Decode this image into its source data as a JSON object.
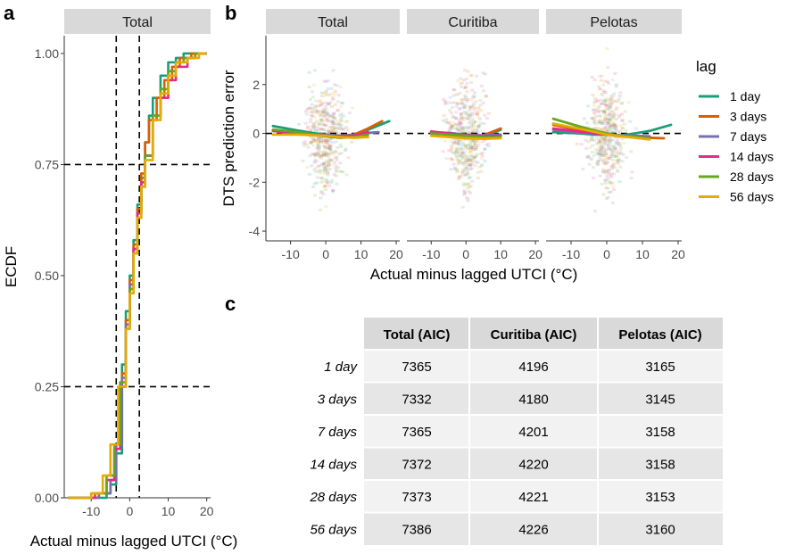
{
  "panel_letters": {
    "a": "a",
    "b": "b",
    "c": "c"
  },
  "colors": {
    "1 day": "#1b9e77",
    "3 days": "#d95f02",
    "7 days": "#7570b3",
    "14 days": "#e7298a",
    "28 days": "#66a61e",
    "56 days": "#e6ab02",
    "strip_bg": "#d9d9d9",
    "table_header_bg": "#d9d9d9",
    "table_row_odd": "#f2f2f2",
    "table_row_even": "#e6e6e6"
  },
  "chart_data": [
    {
      "id": "ecdf",
      "type": "line",
      "facet": "Total",
      "xlabel": "Actual minus lagged UTCI (°C)",
      "ylabel": "ECDF",
      "xlim": [
        -17,
        21
      ],
      "ylim": [
        0,
        1.04
      ],
      "x_ticks": [
        -10,
        0,
        10,
        20
      ],
      "y_ticks": [
        0.0,
        0.25,
        0.5,
        0.75,
        1.0
      ],
      "y_tick_labels": [
        "0.00",
        "0.25",
        "0.50",
        "0.75",
        "1.00"
      ],
      "hlines": [
        0.25,
        0.75
      ],
      "vlines": [
        -3.5,
        2.5
      ],
      "series": [
        {
          "name": "1 day",
          "x": [
            -16,
            -6,
            -5,
            -3.5,
            -2,
            -1,
            0,
            1,
            2,
            3,
            4,
            5,
            6,
            8,
            10,
            12,
            14,
            20
          ],
          "y": [
            0,
            0.01,
            0.03,
            0.1,
            0.3,
            0.42,
            0.5,
            0.58,
            0.66,
            0.72,
            0.8,
            0.86,
            0.9,
            0.95,
            0.98,
            0.99,
            1.0,
            1.0
          ]
        },
        {
          "name": "3 days",
          "x": [
            -16,
            -8,
            -5,
            -3.5,
            -2,
            -1,
            0,
            1,
            2,
            3,
            4,
            5,
            7,
            9,
            11,
            13,
            16,
            20
          ],
          "y": [
            0,
            0.01,
            0.04,
            0.12,
            0.28,
            0.4,
            0.49,
            0.57,
            0.65,
            0.73,
            0.8,
            0.85,
            0.9,
            0.94,
            0.97,
            0.99,
            1.0,
            1.0
          ]
        },
        {
          "name": "7 days",
          "x": [
            -16,
            -8,
            -5,
            -3.5,
            -2,
            -1,
            0,
            1,
            2,
            3,
            4,
            6,
            8,
            10,
            12,
            14,
            17,
            20
          ],
          "y": [
            0,
            0.01,
            0.04,
            0.12,
            0.27,
            0.39,
            0.48,
            0.56,
            0.64,
            0.71,
            0.77,
            0.86,
            0.91,
            0.95,
            0.98,
            0.99,
            1.0,
            1.0
          ]
        },
        {
          "name": "14 days",
          "x": [
            -16,
            -9,
            -6,
            -4,
            -2.5,
            -1,
            0,
            1,
            2,
            3,
            4,
            6,
            8,
            10,
            12,
            15,
            17,
            20
          ],
          "y": [
            0,
            0.01,
            0.04,
            0.11,
            0.25,
            0.38,
            0.47,
            0.56,
            0.64,
            0.71,
            0.77,
            0.86,
            0.9,
            0.94,
            0.97,
            0.99,
            1.0,
            1.0
          ]
        },
        {
          "name": "28 days",
          "x": [
            -16,
            -10,
            -6,
            -4,
            -2.5,
            -1,
            0,
            1,
            2,
            3,
            4,
            6,
            8,
            10,
            12,
            14,
            17,
            20
          ],
          "y": [
            0,
            0.01,
            0.05,
            0.12,
            0.26,
            0.38,
            0.47,
            0.55,
            0.63,
            0.7,
            0.77,
            0.86,
            0.92,
            0.96,
            0.98,
            0.99,
            1.0,
            1.0
          ]
        },
        {
          "name": "56 days",
          "x": [
            -16,
            -10,
            -7,
            -5,
            -3,
            -1,
            0,
            1,
            2,
            3,
            4,
            6,
            8,
            10,
            12,
            15,
            18,
            20
          ],
          "y": [
            0,
            0.01,
            0.05,
            0.12,
            0.25,
            0.38,
            0.46,
            0.55,
            0.63,
            0.7,
            0.76,
            0.85,
            0.91,
            0.95,
            0.98,
            0.99,
            1.0,
            1.0
          ]
        }
      ]
    },
    {
      "id": "prediction_error",
      "type": "scatter",
      "facets": [
        "Total",
        "Curitiba",
        "Pelotas"
      ],
      "xlabel": "Actual minus lagged UTCI (°C)",
      "ylabel": "DTS prediction error",
      "xlim": [
        -17,
        21
      ],
      "ylim": [
        -4.4,
        4.0
      ],
      "x_ticks": [
        -10,
        0,
        10,
        20
      ],
      "y_ticks": [
        -4,
        -2,
        0,
        2
      ],
      "hline": 0,
      "legend_title": "lag",
      "legend": [
        "1 day",
        "3 days",
        "7 days",
        "14 days",
        "28 days",
        "56 days"
      ],
      "legend_position": "right",
      "smooth_fits": {
        "Total": [
          {
            "name": "1 day",
            "x": [
              -15,
              -8,
              -3,
              0,
              4,
              8,
              12,
              18
            ],
            "y": [
              0.3,
              0.12,
              0.0,
              -0.05,
              -0.1,
              -0.05,
              0.15,
              0.5
            ]
          },
          {
            "name": "3 days",
            "x": [
              -15,
              -8,
              -3,
              0,
              4,
              8,
              12,
              16
            ],
            "y": [
              0.1,
              0.02,
              -0.05,
              -0.08,
              -0.12,
              -0.05,
              0.2,
              0.5
            ]
          },
          {
            "name": "7 days",
            "x": [
              -15,
              -8,
              -3,
              0,
              4,
              8,
              12,
              15
            ],
            "y": [
              0.1,
              0.0,
              -0.05,
              -0.05,
              -0.1,
              -0.08,
              0.02,
              0.05
            ]
          },
          {
            "name": "14 days",
            "x": [
              -15,
              -8,
              -3,
              0,
              4,
              8,
              12
            ],
            "y": [
              0.1,
              0.0,
              -0.05,
              -0.1,
              -0.12,
              -0.1,
              0.05
            ]
          },
          {
            "name": "28 days",
            "x": [
              -15,
              -8,
              -3,
              0,
              4,
              8,
              12
            ],
            "y": [
              0.15,
              0.05,
              -0.05,
              -0.12,
              -0.18,
              -0.15,
              -0.05
            ]
          },
          {
            "name": "56 days",
            "x": [
              -15,
              -8,
              -3,
              0,
              4,
              8,
              12
            ],
            "y": [
              -0.05,
              -0.05,
              -0.08,
              -0.1,
              -0.15,
              -0.18,
              -0.15
            ]
          }
        ],
        "Curitiba": [
          {
            "name": "1 day",
            "x": [
              -10,
              -5,
              0,
              5,
              10
            ],
            "y": [
              0.0,
              -0.05,
              -0.1,
              -0.1,
              0.15
            ]
          },
          {
            "name": "3 days",
            "x": [
              -10,
              -5,
              0,
              5,
              10
            ],
            "y": [
              0.05,
              -0.05,
              -0.1,
              -0.08,
              0.2
            ]
          },
          {
            "name": "7 days",
            "x": [
              -10,
              -5,
              0,
              5,
              10
            ],
            "y": [
              0.05,
              0.02,
              -0.05,
              -0.08,
              -0.05
            ]
          },
          {
            "name": "14 days",
            "x": [
              -10,
              -5,
              0,
              5,
              10
            ],
            "y": [
              0.08,
              0.0,
              -0.08,
              -0.12,
              -0.1
            ]
          },
          {
            "name": "28 days",
            "x": [
              -10,
              -5,
              0,
              5,
              10
            ],
            "y": [
              0.0,
              -0.05,
              -0.1,
              -0.15,
              -0.15
            ]
          },
          {
            "name": "56 days",
            "x": [
              -10,
              -5,
              0,
              5,
              10
            ],
            "y": [
              -0.1,
              -0.15,
              -0.2,
              -0.22,
              -0.2
            ]
          }
        ],
        "Pelotas": [
          {
            "name": "1 day",
            "x": [
              -15,
              -8,
              -3,
              0,
              4,
              8,
              12,
              18
            ],
            "y": [
              0.05,
              0.0,
              -0.05,
              -0.05,
              -0.08,
              0.0,
              0.1,
              0.35
            ]
          },
          {
            "name": "3 days",
            "x": [
              -15,
              -8,
              -3,
              0,
              4,
              8,
              12,
              16
            ],
            "y": [
              0.35,
              0.15,
              0.02,
              -0.05,
              -0.1,
              -0.15,
              -0.18,
              -0.2
            ]
          },
          {
            "name": "7 days",
            "x": [
              -15,
              -8,
              -3,
              0,
              4,
              8,
              12
            ],
            "y": [
              0.15,
              0.05,
              -0.02,
              -0.05,
              -0.08,
              -0.1,
              -0.12
            ]
          },
          {
            "name": "14 days",
            "x": [
              -15,
              -8,
              -3,
              0,
              4,
              8,
              12
            ],
            "y": [
              0.2,
              0.08,
              0.0,
              -0.05,
              -0.1,
              -0.15,
              -0.18
            ]
          },
          {
            "name": "28 days",
            "x": [
              -15,
              -8,
              -3,
              0,
              4,
              8,
              12
            ],
            "y": [
              0.6,
              0.3,
              0.1,
              0.0,
              -0.1,
              -0.15,
              -0.2
            ]
          },
          {
            "name": "56 days",
            "x": [
              -15,
              -8,
              -3,
              0,
              4,
              8,
              12
            ],
            "y": [
              0.4,
              0.2,
              0.05,
              -0.05,
              -0.12,
              -0.18,
              -0.25
            ]
          }
        ]
      }
    },
    {
      "id": "aic_table",
      "type": "table",
      "columns": [
        "",
        "Total (AIC)",
        "Curitiba (AIC)",
        "Pelotas (AIC)"
      ],
      "rows": [
        {
          "label": "1 day",
          "values": [
            "7365",
            "4196",
            "3165"
          ]
        },
        {
          "label": "3 days",
          "values": [
            "7332",
            "4180",
            "3145"
          ]
        },
        {
          "label": "7 days",
          "values": [
            "7365",
            "4201",
            "3158"
          ]
        },
        {
          "label": "14 days",
          "values": [
            "7372",
            "4220",
            "3158"
          ]
        },
        {
          "label": "28 days",
          "values": [
            "7373",
            "4221",
            "3153"
          ]
        },
        {
          "label": "56 days",
          "values": [
            "7386",
            "4226",
            "3160"
          ]
        }
      ]
    }
  ]
}
